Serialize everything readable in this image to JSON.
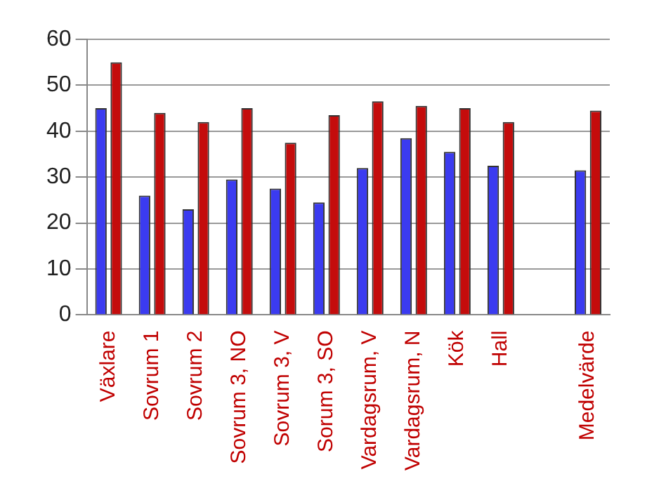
{
  "chart_data": {
    "type": "bar",
    "categories": [
      "Växlare",
      "Sovrum 1",
      "Sovrum 2",
      "Sovrum 3, NO",
      "Sovrum 3, V",
      "Sorum 3, SO",
      "Vardagsrum, V",
      "Vardagsrum, N",
      "Kök",
      "Hall",
      null,
      "Medelvärde"
    ],
    "series": [
      {
        "color": "#3b3bf0",
        "values": [
          45,
          26,
          23,
          29.5,
          27.5,
          24.5,
          32,
          38.5,
          35.5,
          32.5,
          null,
          31.5
        ]
      },
      {
        "color": "#c40c0c",
        "values": [
          55,
          44,
          42,
          45,
          37.5,
          43.5,
          46.5,
          45.5,
          45,
          42,
          null,
          44.5
        ]
      }
    ],
    "ylim": [
      0,
      60
    ],
    "yticks": [
      0,
      10,
      20,
      30,
      40,
      50,
      60
    ],
    "grid": "y",
    "legend": false
  }
}
